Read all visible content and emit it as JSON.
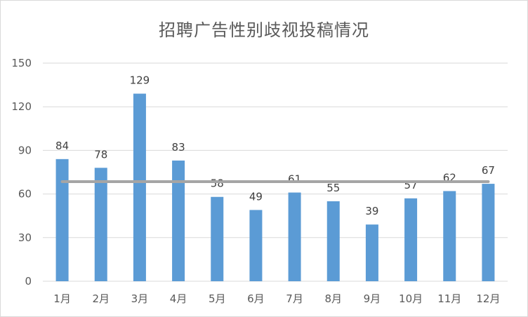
{
  "chart_data": {
    "type": "bar",
    "title": "招聘广告性别歧视投稿情况",
    "categories": [
      "1月",
      "2月",
      "3月",
      "4月",
      "5月",
      "6月",
      "7月",
      "8月",
      "9月",
      "10月",
      "11月",
      "12月"
    ],
    "values": [
      84,
      78,
      129,
      83,
      58,
      49,
      61,
      55,
      39,
      57,
      62,
      67
    ],
    "average_line": 68.5,
    "ylim": [
      0,
      150
    ],
    "yticks": [
      0,
      30,
      60,
      90,
      120,
      150
    ],
    "grid": true,
    "legend": "none",
    "xlabel": "",
    "ylabel": "",
    "colors": {
      "bar": "#5b9bd5",
      "average_line": "#a5a5a5",
      "grid": "#d9d9d9"
    }
  }
}
